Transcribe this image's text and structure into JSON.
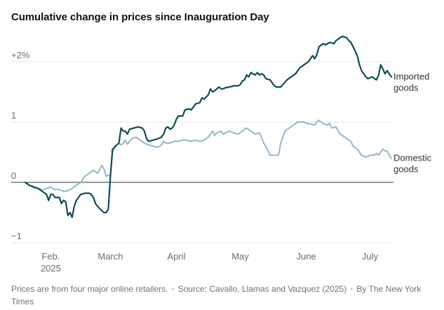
{
  "title": "Cumulative change in prices since Inauguration Day",
  "footer": {
    "note": "Prices are from four major online retailers.",
    "source": "Source: Cavallo, Llamas and Vazquez (2025)",
    "credit": "By The New York Times",
    "separator": "•"
  },
  "colors": {
    "imported": "#0e4c5a",
    "domestic": "#93b8c7",
    "grid": "#e4e4e4",
    "zero": "#333333",
    "tick": "#6c6c6c"
  },
  "chart_data": {
    "type": "line",
    "title": "Cumulative change in prices since Inauguration Day",
    "xlabel": "",
    "ylabel": "",
    "x_unit": "days since Jan 20, 2025",
    "xlim": [
      0,
      173
    ],
    "ylim": [
      -1,
      2
    ],
    "yticks": [
      {
        "value": 2,
        "label": "+2%"
      },
      {
        "value": 1,
        "label": "1"
      },
      {
        "value": 0,
        "label": "0"
      },
      {
        "value": -1,
        "label": "−1"
      }
    ],
    "xticks": [
      {
        "value": 12,
        "label": "Feb.",
        "sublabel": "2025"
      },
      {
        "value": 40,
        "label": "March",
        "sublabel": ""
      },
      {
        "value": 71,
        "label": "April",
        "sublabel": ""
      },
      {
        "value": 101,
        "label": "May",
        "sublabel": ""
      },
      {
        "value": 132,
        "label": "June",
        "sublabel": ""
      },
      {
        "value": 162,
        "label": "July",
        "sublabel": ""
      }
    ],
    "series": [
      {
        "name": "Imported goods",
        "label_lines": [
          "Imported",
          "goods"
        ],
        "points": [
          [
            0,
            0.0
          ],
          [
            2,
            -0.05
          ],
          [
            4,
            -0.08
          ],
          [
            6,
            -0.1
          ],
          [
            8,
            -0.15
          ],
          [
            10,
            -0.2
          ],
          [
            11,
            -0.3
          ],
          [
            12,
            -0.2
          ],
          [
            13,
            -0.2
          ],
          [
            14,
            -0.25
          ],
          [
            16,
            -0.25
          ],
          [
            17,
            -0.35
          ],
          [
            18,
            -0.3
          ],
          [
            19,
            -0.32
          ],
          [
            20,
            -0.55
          ],
          [
            21,
            -0.5
          ],
          [
            22,
            -0.58
          ],
          [
            23,
            -0.4
          ],
          [
            24,
            -0.3
          ],
          [
            25,
            -0.25
          ],
          [
            26,
            -0.2
          ],
          [
            28,
            -0.18
          ],
          [
            30,
            -0.18
          ],
          [
            31,
            -0.2
          ],
          [
            32,
            -0.25
          ],
          [
            33,
            -0.35
          ],
          [
            34,
            -0.4
          ],
          [
            36,
            -0.47
          ],
          [
            37,
            -0.5
          ],
          [
            38,
            -0.5
          ],
          [
            39,
            -0.45
          ],
          [
            40,
            0.1
          ],
          [
            41,
            0.55
          ],
          [
            42,
            0.58
          ],
          [
            43,
            0.62
          ],
          [
            44,
            0.65
          ],
          [
            45,
            0.9
          ],
          [
            46,
            0.85
          ],
          [
            47,
            0.85
          ],
          [
            48,
            0.8
          ],
          [
            49,
            0.88
          ],
          [
            51,
            0.9
          ],
          [
            53,
            0.92
          ],
          [
            55,
            0.9
          ],
          [
            56,
            0.85
          ],
          [
            57,
            0.72
          ],
          [
            58,
            0.68
          ],
          [
            60,
            0.7
          ],
          [
            62,
            0.72
          ],
          [
            64,
            0.75
          ],
          [
            65,
            0.8
          ],
          [
            66,
            0.9
          ],
          [
            67,
            0.92
          ],
          [
            68,
            0.88
          ],
          [
            69,
            0.9
          ],
          [
            70,
            0.95
          ],
          [
            71,
            1.05
          ],
          [
            72,
            1.1
          ],
          [
            74,
            1.1
          ],
          [
            75,
            1.2
          ],
          [
            77,
            1.22
          ],
          [
            78,
            1.2
          ],
          [
            80,
            1.3
          ],
          [
            82,
            1.32
          ],
          [
            83,
            1.4
          ],
          [
            84,
            1.38
          ],
          [
            86,
            1.45
          ],
          [
            87,
            1.55
          ],
          [
            88,
            1.5
          ],
          [
            89,
            1.52
          ],
          [
            90,
            1.55
          ],
          [
            91,
            1.58
          ],
          [
            92,
            1.55
          ],
          [
            93,
            1.55
          ],
          [
            94,
            1.57
          ],
          [
            96,
            1.58
          ],
          [
            98,
            1.6
          ],
          [
            100,
            1.6
          ],
          [
            101,
            1.62
          ],
          [
            102,
            1.68
          ],
          [
            103,
            1.7
          ],
          [
            104,
            1.78
          ],
          [
            105,
            1.75
          ],
          [
            106,
            1.82
          ],
          [
            108,
            1.78
          ],
          [
            109,
            1.82
          ],
          [
            110,
            1.78
          ],
          [
            111,
            1.8
          ],
          [
            112,
            1.78
          ],
          [
            113,
            1.72
          ],
          [
            115,
            1.7
          ],
          [
            117,
            1.6
          ],
          [
            118,
            1.58
          ],
          [
            120,
            1.58
          ],
          [
            121,
            1.62
          ],
          [
            123,
            1.7
          ],
          [
            125,
            1.75
          ],
          [
            127,
            1.8
          ],
          [
            128,
            1.85
          ],
          [
            129,
            1.9
          ],
          [
            131,
            1.95
          ],
          [
            133,
            2.0
          ],
          [
            135,
            2.1
          ],
          [
            136,
            2.05
          ],
          [
            137,
            2.12
          ],
          [
            138,
            2.25
          ],
          [
            140,
            2.3
          ],
          [
            141,
            2.28
          ],
          [
            143,
            2.32
          ],
          [
            145,
            2.3
          ],
          [
            146,
            2.35
          ],
          [
            148,
            2.4
          ],
          [
            149,
            2.42
          ],
          [
            151,
            2.4
          ],
          [
            152,
            2.35
          ],
          [
            153,
            2.32
          ],
          [
            154,
            2.25
          ],
          [
            156,
            2.1
          ],
          [
            157,
            1.95
          ],
          [
            158,
            1.85
          ],
          [
            160,
            1.75
          ],
          [
            161,
            1.72
          ],
          [
            163,
            1.75
          ],
          [
            164,
            1.72
          ],
          [
            165,
            1.7
          ],
          [
            166,
            1.78
          ],
          [
            167,
            1.95
          ],
          [
            168,
            1.88
          ],
          [
            169,
            1.8
          ],
          [
            170,
            1.85
          ],
          [
            171,
            1.8
          ],
          [
            172,
            1.75
          ]
        ]
      },
      {
        "name": "Domestic goods",
        "label_lines": [
          "Domestic",
          "goods"
        ],
        "points": [
          [
            0,
            0.0
          ],
          [
            2,
            -0.05
          ],
          [
            4,
            -0.07
          ],
          [
            6,
            -0.1
          ],
          [
            8,
            -0.12
          ],
          [
            10,
            -0.1
          ],
          [
            12,
            -0.08
          ],
          [
            14,
            -0.12
          ],
          [
            16,
            -0.12
          ],
          [
            18,
            -0.15
          ],
          [
            20,
            -0.14
          ],
          [
            22,
            -0.1
          ],
          [
            24,
            -0.05
          ],
          [
            26,
            0.0
          ],
          [
            28,
            0.1
          ],
          [
            30,
            0.15
          ],
          [
            32,
            0.2
          ],
          [
            34,
            0.15
          ],
          [
            36,
            0.28
          ],
          [
            37,
            0.22
          ],
          [
            38,
            0.1
          ],
          [
            39,
            0.12
          ],
          [
            40,
            0.1
          ],
          [
            41,
            0.5
          ],
          [
            42,
            0.6
          ],
          [
            43,
            0.62
          ],
          [
            44,
            0.65
          ],
          [
            45,
            0.62
          ],
          [
            46,
            0.65
          ],
          [
            47,
            0.7
          ],
          [
            48,
            0.63
          ],
          [
            49,
            0.68
          ],
          [
            50,
            0.72
          ],
          [
            52,
            0.75
          ],
          [
            54,
            0.7
          ],
          [
            56,
            0.65
          ],
          [
            58,
            0.62
          ],
          [
            60,
            0.6
          ],
          [
            62,
            0.58
          ],
          [
            64,
            0.62
          ],
          [
            65,
            0.68
          ],
          [
            66,
            0.65
          ],
          [
            68,
            0.65
          ],
          [
            70,
            0.68
          ],
          [
            72,
            0.68
          ],
          [
            74,
            0.7
          ],
          [
            76,
            0.7
          ],
          [
            78,
            0.68
          ],
          [
            80,
            0.7
          ],
          [
            82,
            0.68
          ],
          [
            84,
            0.7
          ],
          [
            86,
            0.75
          ],
          [
            87,
            0.8
          ],
          [
            88,
            0.85
          ],
          [
            89,
            0.78
          ],
          [
            90,
            0.82
          ],
          [
            92,
            0.85
          ],
          [
            93,
            0.8
          ],
          [
            94,
            0.82
          ],
          [
            96,
            0.85
          ],
          [
            98,
            0.82
          ],
          [
            100,
            0.8
          ],
          [
            102,
            0.85
          ],
          [
            103,
            0.88
          ],
          [
            104,
            0.9
          ],
          [
            106,
            0.85
          ],
          [
            108,
            0.8
          ],
          [
            110,
            0.82
          ],
          [
            111,
            0.75
          ],
          [
            112,
            0.65
          ],
          [
            113,
            0.6
          ],
          [
            115,
            0.45
          ],
          [
            117,
            0.45
          ],
          [
            119,
            0.45
          ],
          [
            120,
            0.65
          ],
          [
            121,
            0.75
          ],
          [
            122,
            0.85
          ],
          [
            124,
            0.9
          ],
          [
            126,
            0.95
          ],
          [
            128,
            1.0
          ],
          [
            130,
            1.0
          ],
          [
            131,
            1.0
          ],
          [
            132,
            0.98
          ],
          [
            134,
            0.97
          ],
          [
            136,
            0.95
          ],
          [
            137,
            1.0
          ],
          [
            138,
            1.03
          ],
          [
            140,
            0.97
          ],
          [
            142,
            0.95
          ],
          [
            143,
            0.98
          ],
          [
            144,
            0.9
          ],
          [
            146,
            0.92
          ],
          [
            147,
            0.85
          ],
          [
            148,
            0.8
          ],
          [
            150,
            0.75
          ],
          [
            152,
            0.7
          ],
          [
            153,
            0.68
          ],
          [
            154,
            0.6
          ],
          [
            156,
            0.55
          ],
          [
            157,
            0.5
          ],
          [
            158,
            0.45
          ],
          [
            160,
            0.42
          ],
          [
            162,
            0.45
          ],
          [
            163,
            0.45
          ],
          [
            164,
            0.45
          ],
          [
            165,
            0.48
          ],
          [
            166,
            0.45
          ],
          [
            167,
            0.5
          ],
          [
            168,
            0.55
          ],
          [
            169,
            0.52
          ],
          [
            170,
            0.52
          ],
          [
            171,
            0.45
          ],
          [
            172,
            0.4
          ]
        ]
      }
    ]
  }
}
